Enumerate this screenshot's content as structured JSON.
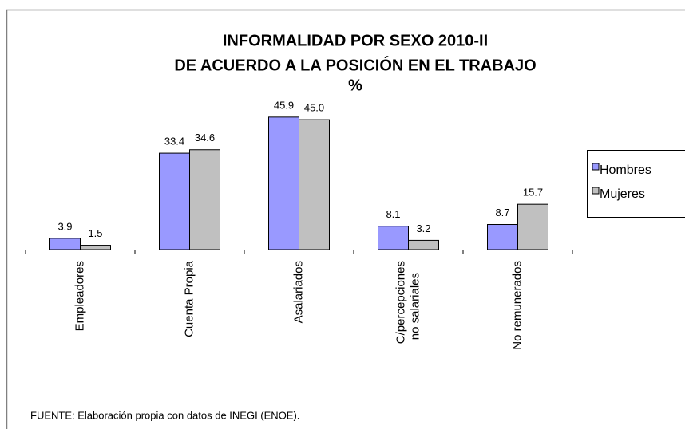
{
  "chart_data": {
    "type": "bar",
    "title": "INFORMALIDAD POR SEXO 2010-II",
    "subtitle": "DE ACUERDO A LA POSICIÓN EN EL TRABAJO",
    "unit": "%",
    "categories": [
      "Empleadores",
      "Cuenta Propia",
      "Asalariados",
      "C/percepciones no salariales",
      "No remunerados"
    ],
    "series": [
      {
        "name": "Hombres",
        "color": "#9999ff",
        "values": [
          3.9,
          33.4,
          45.9,
          8.1,
          8.7
        ]
      },
      {
        "name": "Mujeres",
        "color": "#c0c0c0",
        "values": [
          1.5,
          34.6,
          45,
          3.2,
          15.7
        ],
        "value_labels": [
          "1.5",
          "34.6",
          "45.0",
          "3.2",
          "15.7"
        ]
      }
    ],
    "legend": "right",
    "source": "FUENTE: Elaboración propia con datos de INEGI (ENOE)."
  }
}
